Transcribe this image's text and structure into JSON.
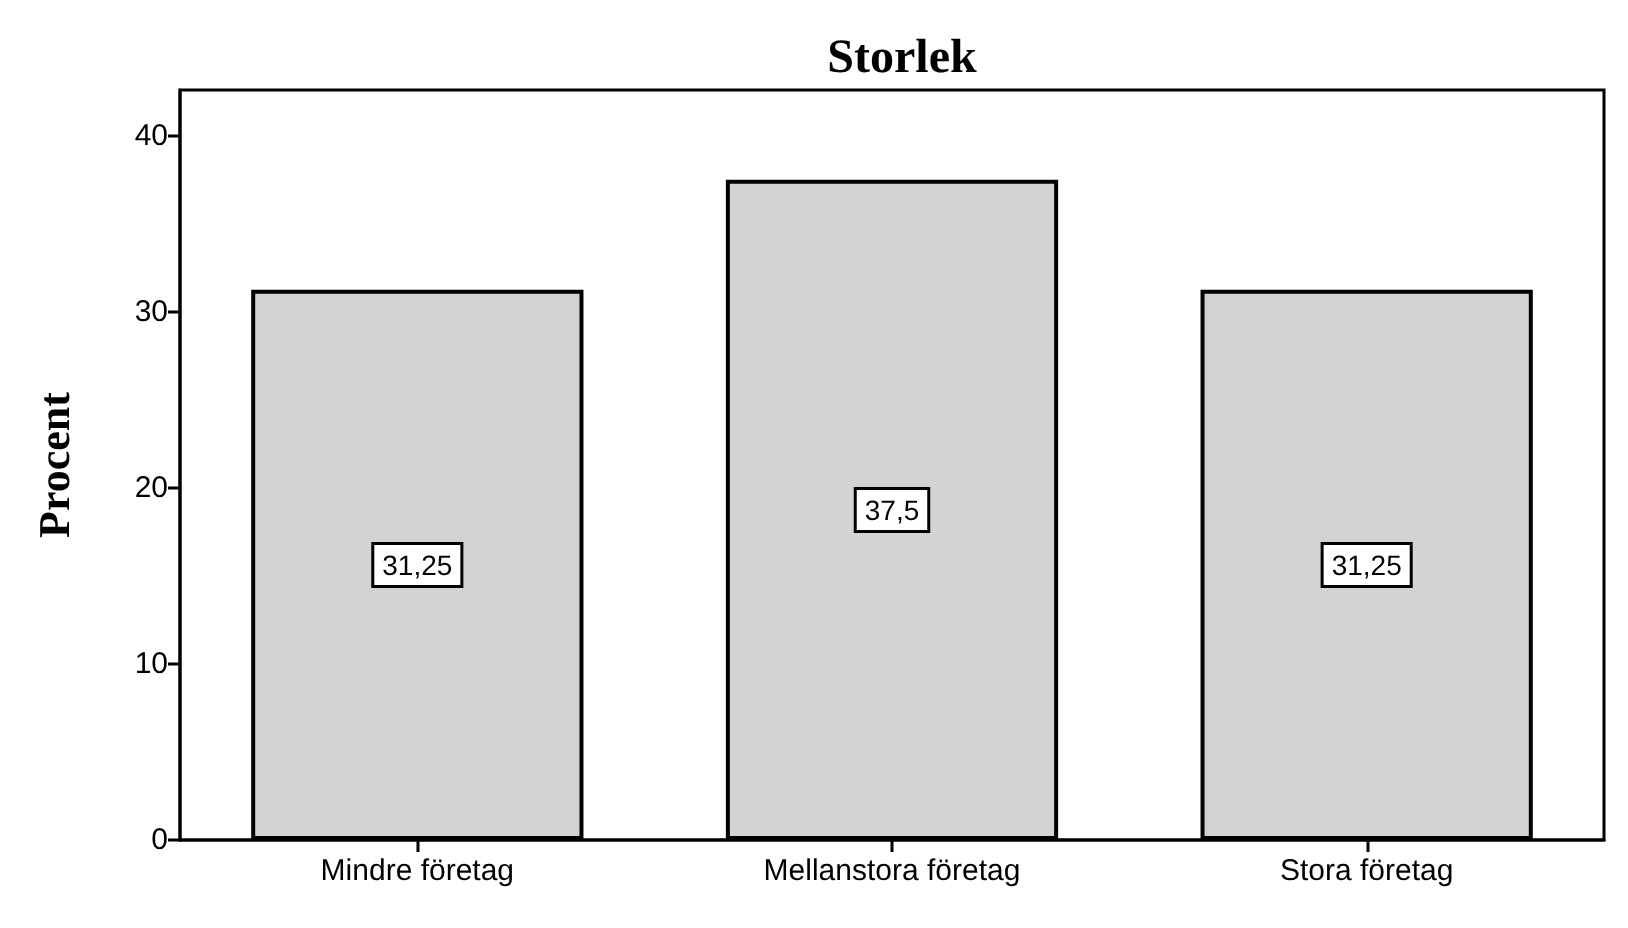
{
  "chart_data": {
    "type": "bar",
    "title": "Storlek",
    "ylabel": "Procent",
    "categories": [
      "Mindre företag",
      "Mellanstora företag",
      "Stora företag"
    ],
    "values": [
      31.25,
      37.5,
      31.25
    ],
    "value_labels": [
      "31,25",
      "37,5",
      "31,25"
    ],
    "color": "#d3d3d3",
    "ylim": [
      0,
      42.6
    ],
    "yticks": [
      0,
      10,
      20,
      30,
      40
    ],
    "grid": false
  }
}
